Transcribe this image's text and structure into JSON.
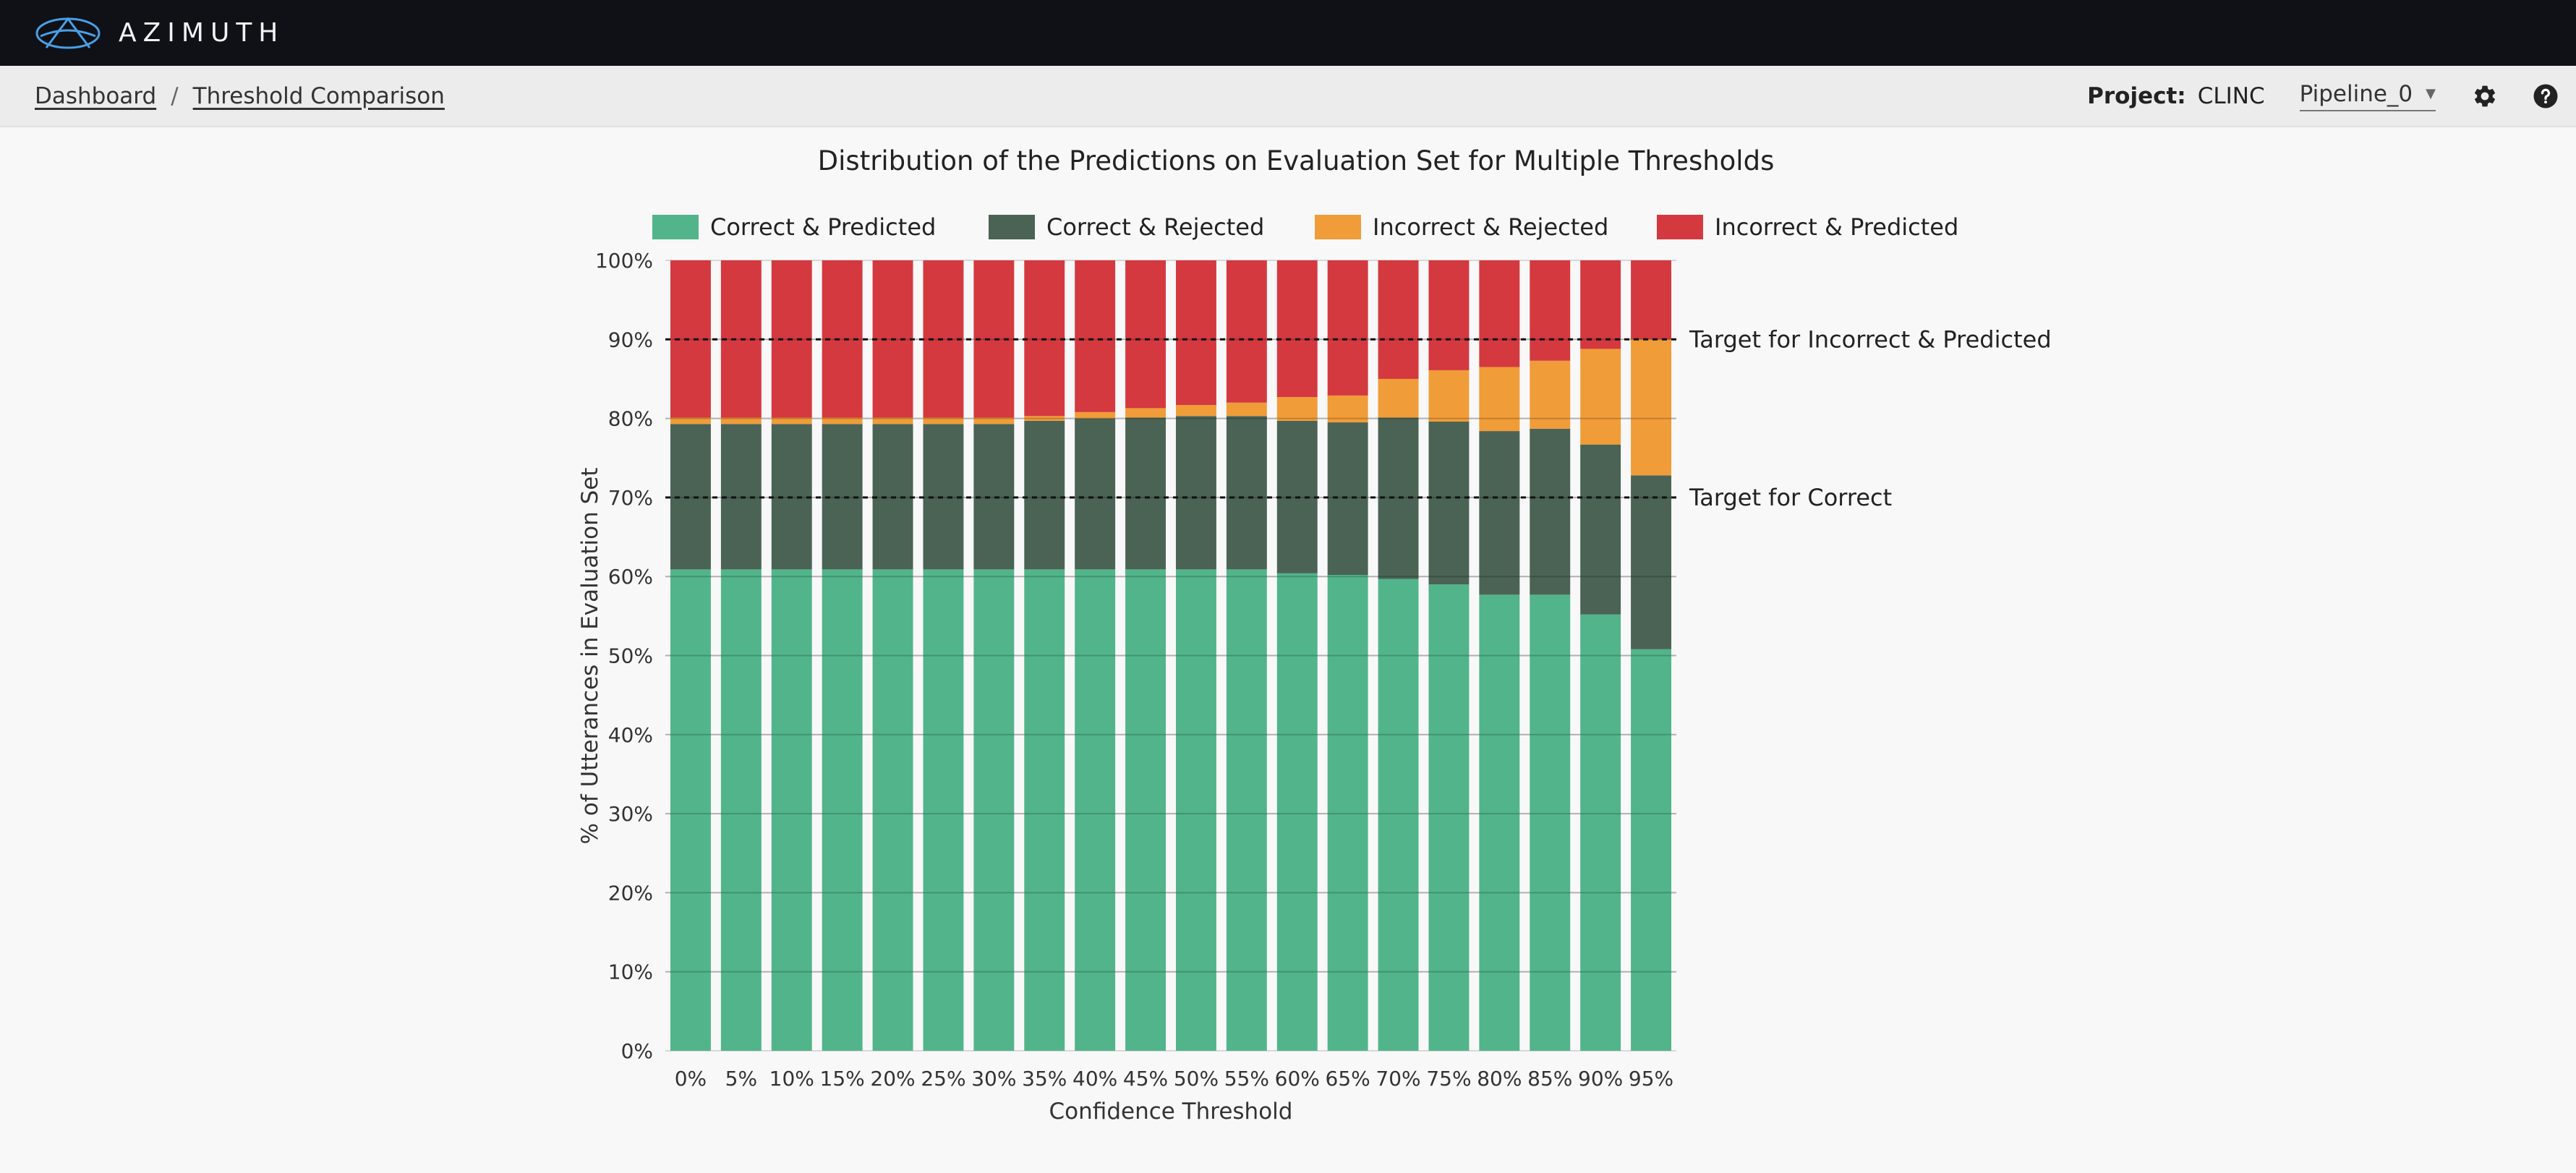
{
  "app": {
    "name": "AZIMUTH"
  },
  "breadcrumb": {
    "dashboard": "Dashboard",
    "separator": "/",
    "current": "Threshold Comparison"
  },
  "project": {
    "label": "Project:",
    "name": "CLINC"
  },
  "pipeline": {
    "selected": "Pipeline_0"
  },
  "icons": {
    "settings": "gear-icon",
    "help": "help-icon",
    "dropdown": "caret-down-icon"
  },
  "chart_data": {
    "type": "bar",
    "stacked": true,
    "title": "Distribution of the Predictions on Evaluation Set for Multiple Thresholds",
    "xlabel": "Confidence Threshold",
    "ylabel": "% of Utterances in Evaluation Set",
    "ylim": [
      0,
      100
    ],
    "yticks": [
      "0%",
      "10%",
      "20%",
      "30%",
      "40%",
      "50%",
      "60%",
      "70%",
      "80%",
      "90%",
      "100%"
    ],
    "legend_position": "top",
    "grid": true,
    "categories": [
      "0%",
      "5%",
      "10%",
      "15%",
      "20%",
      "25%",
      "30%",
      "35%",
      "40%",
      "45%",
      "50%",
      "55%",
      "60%",
      "65%",
      "70%",
      "75%",
      "80%",
      "85%",
      "90%",
      "95%"
    ],
    "series": [
      {
        "name": "Correct & Predicted",
        "color": "#52b48a",
        "values": [
          60.9,
          60.9,
          60.9,
          60.9,
          60.9,
          60.9,
          60.9,
          60.9,
          60.9,
          60.9,
          60.9,
          60.9,
          60.4,
          60.2,
          59.7,
          59.0,
          57.7,
          57.7,
          55.2,
          50.8
        ]
      },
      {
        "name": "Correct & Rejected",
        "color": "#4a6355",
        "values": [
          18.4,
          18.4,
          18.4,
          18.4,
          18.4,
          18.4,
          18.4,
          18.8,
          19.1,
          19.2,
          19.4,
          19.4,
          19.3,
          19.3,
          20.4,
          20.6,
          20.7,
          21.0,
          21.5,
          22.0
        ]
      },
      {
        "name": "Incorrect & Rejected",
        "color": "#f09c38",
        "values": [
          0.8,
          0.8,
          0.8,
          0.8,
          0.8,
          0.8,
          0.8,
          0.6,
          0.8,
          1.2,
          1.4,
          1.7,
          3.0,
          3.4,
          4.9,
          6.5,
          8.1,
          8.6,
          12.1,
          17.2
        ]
      },
      {
        "name": "Incorrect & Predicted",
        "color": "#d4393f",
        "values": [
          19.9,
          19.9,
          19.9,
          19.9,
          19.9,
          19.9,
          19.9,
          19.7,
          19.2,
          18.7,
          18.3,
          18.0,
          17.3,
          17.1,
          15.0,
          13.9,
          13.5,
          12.7,
          11.2,
          10.0
        ]
      }
    ],
    "reference_lines": [
      {
        "value": 90,
        "label": "Target for Incorrect & Predicted"
      },
      {
        "value": 70,
        "label": "Target for Correct"
      }
    ]
  }
}
